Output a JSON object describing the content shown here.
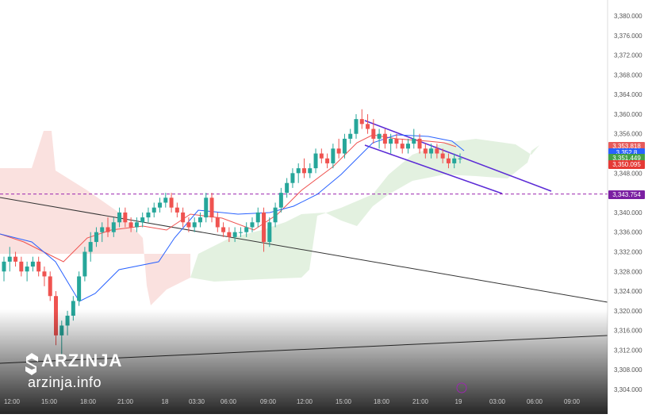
{
  "chart_data": {
    "type": "candlestick",
    "ylim": [
      3303,
      3383
    ],
    "y_ticks": [
      "3,380.000",
      "3,376.000",
      "3,372.000",
      "3,368.000",
      "3,364.000",
      "3,360.000",
      "3,356.000",
      "3,352.000",
      "3,348.000",
      "3,344.000",
      "3,340.000",
      "3,336.000",
      "3,332.000",
      "3,328.000",
      "3,324.000",
      "3,320.000",
      "3,316.000",
      "3,312.000",
      "3,308.000",
      "3,304.000"
    ],
    "x_ticks": [
      "12:00",
      "15:00",
      "18:00",
      "21:00",
      "18",
      "03:30",
      "06:00",
      "09:00",
      "12:00",
      "15:00",
      "18:00",
      "21:00",
      "19",
      "03:00",
      "06:00",
      "09:00"
    ],
    "candles": [
      [
        3328,
        3331,
        3326,
        3330
      ],
      [
        3330,
        3333,
        3328,
        3331
      ],
      [
        3331,
        3332,
        3329,
        3330
      ],
      [
        3330,
        3331,
        3327,
        3328
      ],
      [
        3328,
        3330,
        3326,
        3329
      ],
      [
        3329,
        3331,
        3328,
        3330
      ],
      [
        3330,
        3331,
        3327,
        3328
      ],
      [
        3328,
        3329,
        3325,
        3327
      ],
      [
        3327,
        3328,
        3322,
        3323
      ],
      [
        3323,
        3324,
        3313,
        3315
      ],
      [
        3315,
        3318,
        3311,
        3317
      ],
      [
        3317,
        3320,
        3315,
        3319
      ],
      [
        3319,
        3323,
        3318,
        3322
      ],
      [
        3322,
        3328,
        3321,
        3327
      ],
      [
        3327,
        3333,
        3326,
        3332
      ],
      [
        3332,
        3336,
        3330,
        3334
      ],
      [
        3334,
        3337,
        3333,
        3336
      ],
      [
        3336,
        3338,
        3334,
        3337
      ],
      [
        3337,
        3339,
        3335,
        3336
      ],
      [
        3336,
        3339,
        3335,
        3338
      ],
      [
        3338,
        3341,
        3337,
        3340
      ],
      [
        3340,
        3341,
        3337,
        3338
      ],
      [
        3338,
        3339,
        3336,
        3337
      ],
      [
        3337,
        3339,
        3336,
        3338
      ],
      [
        3338,
        3340,
        3337,
        3339
      ],
      [
        3339,
        3341,
        3338,
        3340
      ],
      [
        3340,
        3342,
        3339,
        3341
      ],
      [
        3341,
        3343,
        3340,
        3342
      ],
      [
        3342,
        3344,
        3341,
        3343
      ],
      [
        3343,
        3344,
        3340,
        3341
      ],
      [
        3341,
        3342,
        3339,
        3340
      ],
      [
        3340,
        3341,
        3337,
        3338
      ],
      [
        3338,
        3339,
        3336,
        3337
      ],
      [
        3337,
        3339,
        3336,
        3338
      ],
      [
        3338,
        3340,
        3337,
        3339
      ],
      [
        3339,
        3344,
        3338,
        3343
      ],
      [
        3343,
        3344,
        3338,
        3339
      ],
      [
        3339,
        3340,
        3336,
        3337
      ],
      [
        3337,
        3338,
        3335,
        3336
      ],
      [
        3336,
        3337,
        3334,
        3335
      ],
      [
        3335,
        3337,
        3334,
        3336
      ],
      [
        3336,
        3337,
        3335,
        3336
      ],
      [
        3336,
        3338,
        3335,
        3337
      ],
      [
        3337,
        3339,
        3336,
        3338
      ],
      [
        3338,
        3341,
        3337,
        3340
      ],
      [
        3340,
        3341,
        3332,
        3334
      ],
      [
        3334,
        3339,
        3333,
        3338
      ],
      [
        3338,
        3342,
        3337,
        3341
      ],
      [
        3341,
        3345,
        3340,
        3344
      ],
      [
        3344,
        3347,
        3343,
        3346
      ],
      [
        3346,
        3349,
        3345,
        3348
      ],
      [
        3348,
        3350,
        3346,
        3349
      ],
      [
        3349,
        3351,
        3347,
        3348
      ],
      [
        3348,
        3350,
        3347,
        3349
      ],
      [
        3349,
        3353,
        3348,
        3352
      ],
      [
        3352,
        3353,
        3350,
        3351
      ],
      [
        3351,
        3352,
        3349,
        3350
      ],
      [
        3350,
        3354,
        3349,
        3353
      ],
      [
        3353,
        3355,
        3351,
        3352
      ],
      [
        3352,
        3356,
        3351,
        3355
      ],
      [
        3355,
        3357,
        3354,
        3356
      ],
      [
        3356,
        3360,
        3355,
        3359
      ],
      [
        3359,
        3361,
        3357,
        3358
      ],
      [
        3358,
        3360,
        3356,
        3357
      ],
      [
        3357,
        3359,
        3354,
        3355
      ],
      [
        3355,
        3357,
        3353,
        3356
      ],
      [
        3356,
        3357,
        3353,
        3354
      ],
      [
        3354,
        3356,
        3352,
        3355
      ],
      [
        3355,
        3356,
        3353,
        3354
      ],
      [
        3354,
        3355,
        3352,
        3353
      ],
      [
        3353,
        3355,
        3352,
        3354
      ],
      [
        3354,
        3357,
        3353,
        3355
      ],
      [
        3355,
        3356,
        3352,
        3353
      ],
      [
        3353,
        3354,
        3351,
        3352
      ],
      [
        3352,
        3354,
        3351,
        3353
      ],
      [
        3353,
        3354,
        3351,
        3352
      ],
      [
        3352,
        3353,
        3350,
        3351
      ],
      [
        3351,
        3352,
        3349,
        3350
      ],
      [
        3350,
        3352,
        3349,
        3351
      ],
      [
        3351,
        3352,
        3350,
        3351
      ]
    ],
    "current_price": "3,350.095",
    "price_tags": [
      {
        "label": "3,353.818",
        "value": 3353.818,
        "color": "#e65a5a"
      },
      {
        "label": "3,352.8",
        "value": 3352.8,
        "color": "#2962ff"
      },
      {
        "label": "3,351.449",
        "value": 3351.449,
        "color": "#43a047"
      },
      {
        "label": "3,350.095",
        "value": 3350.095,
        "color": "#e53935"
      },
      {
        "label": "3,343.754",
        "value": 3343.754,
        "color": "#7b1fa2"
      }
    ],
    "dashed_level": 3343.754,
    "grid": false
  },
  "brand": {
    "name": "ARZINJA",
    "url": "arzinja.info"
  }
}
